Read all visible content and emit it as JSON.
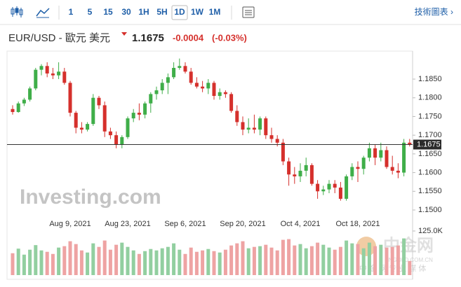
{
  "toolbar": {
    "intervals": [
      "1",
      "5",
      "15",
      "30",
      "1H",
      "5H",
      "1D",
      "1W",
      "1M"
    ],
    "selected": "1D",
    "link": "技術圖表 ›"
  },
  "header": {
    "symbol": "EUR/USD - 歐元 美元",
    "price": "1.1675",
    "change": "-0.0004",
    "change_percent": "(-0.03%)"
  },
  "chart_data": {
    "type": "candlestick",
    "categories": [
      null,
      null,
      null,
      null,
      null,
      null,
      null,
      null,
      null,
      null,
      "Aug 9, 2021",
      null,
      null,
      null,
      null,
      null,
      null,
      null,
      null,
      null,
      "Aug 23, 2021",
      null,
      null,
      null,
      null,
      null,
      null,
      null,
      null,
      null,
      "Sep 6, 2021",
      null,
      null,
      null,
      null,
      null,
      null,
      null,
      null,
      null,
      "Sep 20, 2021",
      null,
      null,
      null,
      null,
      null,
      null,
      null,
      null,
      null,
      "Oct 4, 2021",
      null,
      null,
      null,
      null,
      null,
      null,
      null,
      null,
      null,
      "Oct 18, 2021",
      null,
      null,
      null,
      null,
      null,
      null,
      null,
      null,
      null
    ],
    "open": [
      1.177,
      1.1762,
      1.1785,
      1.1795,
      1.1825,
      1.1875,
      1.1885,
      1.1865,
      1.186,
      1.187,
      1.184,
      1.176,
      1.172,
      1.1715,
      1.173,
      1.18,
      1.178,
      1.171,
      1.17,
      1.1675,
      1.1695,
      1.1745,
      1.176,
      1.1755,
      1.1785,
      1.181,
      1.182,
      1.184,
      1.1855,
      1.188,
      1.1885,
      1.187,
      1.184,
      1.183,
      1.1825,
      1.184,
      1.1805,
      1.1815,
      1.181,
      1.1765,
      1.1735,
      1.1715,
      1.172,
      1.1715,
      1.1745,
      1.17,
      1.169,
      1.168,
      1.163,
      1.1595,
      1.159,
      1.1605,
      1.162,
      1.157,
      1.155,
      1.1555,
      1.157,
      1.156,
      1.153,
      1.159,
      1.1615,
      1.161,
      1.164,
      1.1665,
      1.164,
      1.166,
      1.1615,
      1.1605,
      1.16,
      1.168
    ],
    "high": [
      1.178,
      1.179,
      1.18,
      1.183,
      1.188,
      1.189,
      1.1895,
      1.188,
      1.1895,
      1.188,
      1.1845,
      1.1765,
      1.1735,
      1.1735,
      1.181,
      1.1805,
      1.179,
      1.172,
      1.171,
      1.17,
      1.175,
      1.177,
      1.1785,
      1.179,
      1.1815,
      1.183,
      1.185,
      1.1865,
      1.1895,
      1.1905,
      1.1895,
      1.188,
      1.1855,
      1.1845,
      1.185,
      1.1845,
      1.1825,
      1.182,
      1.1815,
      1.178,
      1.175,
      1.1745,
      1.1755,
      1.175,
      1.175,
      1.172,
      1.17,
      1.169,
      1.164,
      1.1615,
      1.1625,
      1.164,
      1.1625,
      1.158,
      1.1565,
      1.158,
      1.158,
      1.1575,
      1.1595,
      1.1625,
      1.163,
      1.1645,
      1.168,
      1.1675,
      1.168,
      1.167,
      1.1645,
      1.1625,
      1.169,
      1.169
    ],
    "low": [
      1.1755,
      1.176,
      1.1778,
      1.179,
      1.182,
      1.186,
      1.1855,
      1.185,
      1.185,
      1.1835,
      1.175,
      1.1705,
      1.1705,
      1.171,
      1.1725,
      1.177,
      1.1695,
      1.169,
      1.1665,
      1.1665,
      1.169,
      1.1735,
      1.174,
      1.1745,
      1.176,
      1.1795,
      1.181,
      1.181,
      1.185,
      1.1875,
      1.1865,
      1.1835,
      1.1825,
      1.1815,
      1.181,
      1.1795,
      1.1795,
      1.18,
      1.176,
      1.1725,
      1.17,
      1.1705,
      1.1705,
      1.17,
      1.169,
      1.168,
      1.167,
      1.162,
      1.1565,
      1.157,
      1.1575,
      1.159,
      1.1565,
      1.153,
      1.154,
      1.1545,
      1.1545,
      1.1525,
      1.1525,
      1.158,
      1.1575,
      1.1595,
      1.163,
      1.162,
      1.163,
      1.161,
      1.1595,
      1.1585,
      1.159,
      1.167
    ],
    "close": [
      1.1762,
      1.1785,
      1.1795,
      1.1825,
      1.1875,
      1.1885,
      1.1865,
      1.186,
      1.187,
      1.184,
      1.176,
      1.172,
      1.1715,
      1.173,
      1.18,
      1.178,
      1.171,
      1.17,
      1.1675,
      1.1695,
      1.1745,
      1.176,
      1.1755,
      1.1785,
      1.181,
      1.182,
      1.184,
      1.1855,
      1.188,
      1.1885,
      1.187,
      1.184,
      1.183,
      1.1825,
      1.184,
      1.1805,
      1.1815,
      1.181,
      1.1765,
      1.1735,
      1.1715,
      1.172,
      1.1715,
      1.1745,
      1.17,
      1.169,
      1.168,
      1.163,
      1.1595,
      1.159,
      1.1605,
      1.162,
      1.157,
      1.155,
      1.1555,
      1.157,
      1.156,
      1.153,
      1.159,
      1.1615,
      1.161,
      1.164,
      1.1665,
      1.164,
      1.166,
      1.1615,
      1.1605,
      1.16,
      1.168,
      1.1675
    ],
    "volume": [
      62000,
      75000,
      58000,
      72000,
      85000,
      70000,
      66000,
      60000,
      78000,
      82000,
      96000,
      88000,
      70000,
      64000,
      90000,
      80000,
      98000,
      72000,
      86000,
      92000,
      80000,
      70000,
      60000,
      68000,
      74000,
      70000,
      76000,
      80000,
      90000,
      72000,
      60000,
      78000,
      66000,
      70000,
      74000,
      68000,
      64000,
      72000,
      84000,
      90000,
      96000,
      76000,
      80000,
      82000,
      86000,
      78000,
      70000,
      100000,
      102000,
      84000,
      88000,
      76000,
      82000,
      92000,
      86000,
      78000,
      72000,
      80000,
      98000,
      90000,
      88000,
      76000,
      92000,
      82000,
      86000,
      78000,
      80000,
      84000,
      104000,
      40000
    ],
    "up_color": "#3fae49",
    "down_color": "#d5302c",
    "volume_up_color": "#92cfa0",
    "volume_down_color": "#eea3a3",
    "ylim": [
      1.148,
      1.192
    ],
    "yticks": [
      {
        "value": 1.185,
        "label": "1.1850"
      },
      {
        "value": 1.18,
        "label": "1.1800"
      },
      {
        "value": 1.175,
        "label": "1.1750"
      },
      {
        "value": 1.17,
        "label": "1.1700"
      },
      {
        "value": 1.165,
        "label": "1.1650"
      },
      {
        "value": 1.16,
        "label": "1.1600"
      },
      {
        "value": 1.155,
        "label": "1.1550"
      },
      {
        "value": 1.15,
        "label": "1.1500"
      }
    ],
    "volume_ylim": [
      0,
      125000
    ],
    "volume_yticks": [
      {
        "value": 125000,
        "label": "125.0K"
      }
    ],
    "last_price": {
      "value": 1.1675,
      "label": "1.1675"
    },
    "watermark": "Investing.com",
    "logo": {
      "name": "中金网",
      "site": "CNGOLD.COM.CN",
      "slogan": "中 金 网 专 业 媒 体"
    }
  }
}
